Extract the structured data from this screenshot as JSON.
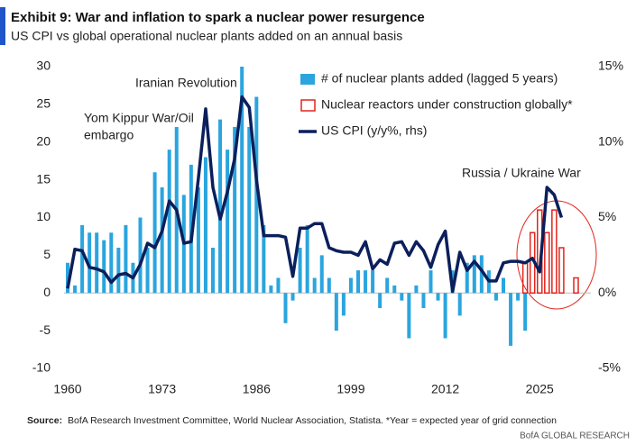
{
  "chart_data": {
    "type": "bar-line",
    "title": "Exhibit 9: War and inflation to spark a nuclear power resurgence",
    "subtitle": "US CPI vs global operational nuclear plants added on an annual basis",
    "source_label": "Source:",
    "source": "BofA Research Investment Committee, World Nuclear Association, Statista. *Year = expected year of grid connection",
    "footer": "BofA GLOBAL RESEARCH",
    "x": [
      1960,
      1961,
      1962,
      1963,
      1964,
      1965,
      1966,
      1967,
      1968,
      1969,
      1970,
      1971,
      1972,
      1973,
      1974,
      1975,
      1976,
      1977,
      1978,
      1979,
      1980,
      1981,
      1982,
      1983,
      1984,
      1985,
      1986,
      1987,
      1988,
      1989,
      1990,
      1991,
      1992,
      1993,
      1994,
      1995,
      1996,
      1997,
      1998,
      1999,
      2000,
      2001,
      2002,
      2003,
      2004,
      2005,
      2006,
      2007,
      2008,
      2009,
      2010,
      2011,
      2012,
      2013,
      2014,
      2015,
      2016,
      2017,
      2018,
      2019,
      2020,
      2021,
      2022,
      2023,
      2024,
      2025,
      2026,
      2027,
      2028,
      2029,
      2030
    ],
    "xlim": [
      1960,
      2031.5
    ],
    "xticks": [
      1960,
      1973,
      1986,
      1999,
      2012,
      2025
    ],
    "ylim": [
      -10,
      30
    ],
    "yticks": [
      30,
      25,
      20,
      15,
      10,
      5,
      0,
      -5,
      -10
    ],
    "y2lim": [
      -5,
      15
    ],
    "y2ticks": [
      {
        "value": 15,
        "label": "15%"
      },
      {
        "value": 10,
        "label": "10%"
      },
      {
        "value": 5,
        "label": "5%"
      },
      {
        "value": 0,
        "label": "0%"
      },
      {
        "value": -5,
        "label": "-5%"
      }
    ],
    "series": [
      {
        "name": "# of nuclear plants added (lagged 5 years)",
        "type": "bar",
        "color": "#2aa5de",
        "values": [
          4,
          1,
          9,
          8,
          8,
          7,
          8,
          6,
          9,
          4,
          10,
          6,
          16,
          14,
          19,
          22,
          13,
          17,
          14,
          18,
          6,
          23,
          19,
          22,
          30,
          22,
          26,
          9,
          1,
          2,
          -4,
          -1,
          6,
          9,
          2,
          5,
          2,
          -5,
          -3,
          2,
          3,
          3,
          3,
          -2,
          2,
          1,
          -1,
          -6,
          1,
          -2,
          3,
          -1,
          -6,
          3,
          -3,
          4,
          5,
          5,
          3,
          -1,
          2,
          -7,
          -1,
          -5,
          null,
          null,
          null,
          null,
          null,
          null,
          null
        ]
      },
      {
        "name": "Nuclear reactors under construction globally*",
        "type": "hollow-bar",
        "color": "#e3241b",
        "values": [
          null,
          null,
          null,
          null,
          null,
          null,
          null,
          null,
          null,
          null,
          null,
          null,
          null,
          null,
          null,
          null,
          null,
          null,
          null,
          null,
          null,
          null,
          null,
          null,
          null,
          null,
          null,
          null,
          null,
          null,
          null,
          null,
          null,
          null,
          null,
          null,
          null,
          null,
          null,
          null,
          null,
          null,
          null,
          null,
          null,
          null,
          null,
          null,
          null,
          null,
          null,
          null,
          null,
          null,
          null,
          null,
          null,
          null,
          null,
          null,
          null,
          null,
          null,
          4,
          8,
          11,
          8,
          11,
          6,
          null,
          2
        ]
      },
      {
        "name": "US CPI (y/y%, rhs)",
        "type": "line",
        "axis": "y2",
        "color": "#0b1f5c",
        "values": [
          0.3,
          2.9,
          2.8,
          1.7,
          1.6,
          1.4,
          0.7,
          1.2,
          1.3,
          1.0,
          1.9,
          3.3,
          3.0,
          4.1,
          6.1,
          5.5,
          3.3,
          3.4,
          7.6,
          12.2,
          7.0,
          4.9,
          6.7,
          8.9,
          13.0,
          12.3,
          7.5,
          3.8,
          3.8,
          3.8,
          3.7,
          1.1,
          4.3,
          4.3,
          4.6,
          4.6,
          3.0,
          2.8,
          2.7,
          2.7,
          2.5,
          3.4,
          1.6,
          2.2,
          1.9,
          3.3,
          3.4,
          2.5,
          3.4,
          2.8,
          1.7,
          3.2,
          4.1,
          0.1,
          2.7,
          1.5,
          2.1,
          1.5,
          0.8,
          0.8,
          2.0,
          2.1,
          2.1,
          2.0,
          2.3,
          1.4,
          7.0,
          6.5,
          5.0,
          null,
          null
        ]
      }
    ],
    "annotations": [
      {
        "lines": [
          "Iranian Revolution"
        ]
      },
      {
        "lines": [
          "Yom Kippur War/Oil",
          "embargo"
        ]
      },
      {
        "lines": [
          "Russia / Ukraine War"
        ]
      }
    ],
    "legend": "top"
  }
}
